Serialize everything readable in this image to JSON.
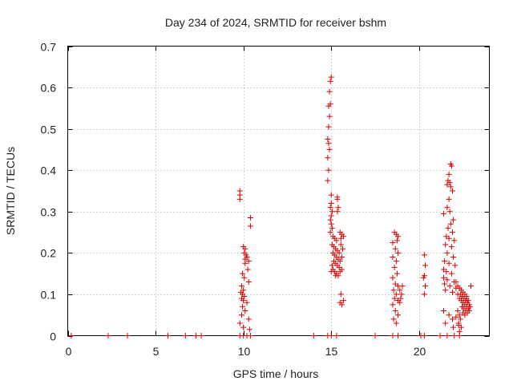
{
  "chart_data": {
    "type": "scatter",
    "title": "Day 234 of 2024, SRMTID for receiver bshm",
    "xlabel": "GPS time / hours",
    "ylabel": "SRMTID / TECUs",
    "xlim": [
      0,
      24
    ],
    "ylim": [
      0,
      0.7
    ],
    "xticks": [
      0,
      5,
      10,
      15,
      20
    ],
    "xtick_labels": [
      "0",
      "5",
      "10",
      "15",
      "20"
    ],
    "yticks": [
      0,
      0.1,
      0.2,
      0.3,
      0.4,
      0.5,
      0.6,
      0.7
    ],
    "ytick_labels": [
      "0",
      "0.1",
      "0.2",
      "0.3",
      "0.4",
      "0.5",
      "0.6",
      "0.7"
    ],
    "grid": true,
    "marker": "+",
    "color": "#dd0000",
    "series": [
      {
        "name": "bshm",
        "points": [
          [
            0.2,
            0
          ],
          [
            2.3,
            0
          ],
          [
            3.4,
            0
          ],
          [
            5.7,
            0
          ],
          [
            6.7,
            0
          ],
          [
            7.3,
            0
          ],
          [
            7.6,
            0
          ],
          [
            9.8,
            0
          ],
          [
            10.0,
            0
          ],
          [
            10.2,
            0
          ],
          [
            10.4,
            0
          ],
          [
            14.0,
            0
          ],
          [
            14.8,
            0
          ],
          [
            15.0,
            0
          ],
          [
            15.3,
            0
          ],
          [
            17.5,
            0
          ],
          [
            18.5,
            0
          ],
          [
            18.8,
            0
          ],
          [
            20.1,
            0
          ],
          [
            20.3,
            0
          ],
          [
            21.2,
            0
          ],
          [
            21.6,
            0
          ],
          [
            22.0,
            0
          ],
          [
            22.3,
            0
          ],
          [
            9.8,
            0.35
          ],
          [
            9.8,
            0.34
          ],
          [
            9.8,
            0.33
          ],
          [
            10.4,
            0.285
          ],
          [
            10.4,
            0.265
          ],
          [
            10.0,
            0.215
          ],
          [
            10.1,
            0.21
          ],
          [
            10.05,
            0.2
          ],
          [
            10.15,
            0.195
          ],
          [
            10.2,
            0.19
          ],
          [
            10.1,
            0.185
          ],
          [
            10.3,
            0.18
          ],
          [
            10.1,
            0.175
          ],
          [
            10.25,
            0.16
          ],
          [
            9.95,
            0.15
          ],
          [
            10.05,
            0.14
          ],
          [
            10.3,
            0.13
          ],
          [
            9.9,
            0.12
          ],
          [
            10.0,
            0.11
          ],
          [
            9.85,
            0.105
          ],
          [
            9.95,
            0.1
          ],
          [
            10.05,
            0.095
          ],
          [
            9.9,
            0.09
          ],
          [
            10.0,
            0.085
          ],
          [
            10.2,
            0.08
          ],
          [
            9.95,
            0.07
          ],
          [
            10.1,
            0.06
          ],
          [
            9.9,
            0.05
          ],
          [
            10.3,
            0.04
          ],
          [
            9.8,
            0.03
          ],
          [
            10.0,
            0.02
          ],
          [
            10.35,
            0.015
          ],
          [
            15.0,
            0.625
          ],
          [
            14.95,
            0.615
          ],
          [
            14.9,
            0.59
          ],
          [
            14.95,
            0.56
          ],
          [
            14.85,
            0.555
          ],
          [
            14.9,
            0.53
          ],
          [
            14.85,
            0.505
          ],
          [
            14.8,
            0.475
          ],
          [
            14.85,
            0.465
          ],
          [
            14.9,
            0.45
          ],
          [
            14.8,
            0.43
          ],
          [
            14.85,
            0.4
          ],
          [
            14.8,
            0.375
          ],
          [
            15.0,
            0.34
          ],
          [
            15.0,
            0.32
          ],
          [
            14.95,
            0.31
          ],
          [
            15.05,
            0.3
          ],
          [
            15.0,
            0.29
          ],
          [
            14.95,
            0.28
          ],
          [
            15.0,
            0.27
          ],
          [
            15.05,
            0.26
          ],
          [
            14.95,
            0.25
          ],
          [
            15.35,
            0.335
          ],
          [
            15.35,
            0.33
          ],
          [
            15.4,
            0.31
          ],
          [
            15.35,
            0.3
          ],
          [
            15.1,
            0.24
          ],
          [
            15.2,
            0.235
          ],
          [
            15.3,
            0.23
          ],
          [
            15.5,
            0.25
          ],
          [
            15.6,
            0.245
          ],
          [
            15.7,
            0.24
          ],
          [
            15.55,
            0.235
          ],
          [
            15.05,
            0.22
          ],
          [
            15.15,
            0.215
          ],
          [
            15.25,
            0.21
          ],
          [
            15.35,
            0.205
          ],
          [
            15.45,
            0.2
          ],
          [
            15.55,
            0.22
          ],
          [
            15.65,
            0.21
          ],
          [
            15.1,
            0.2
          ],
          [
            15.2,
            0.195
          ],
          [
            15.3,
            0.19
          ],
          [
            15.4,
            0.185
          ],
          [
            15.5,
            0.18
          ],
          [
            15.6,
            0.19
          ],
          [
            15.15,
            0.18
          ],
          [
            15.25,
            0.175
          ],
          [
            15.35,
            0.17
          ],
          [
            15.45,
            0.165
          ],
          [
            15.05,
            0.17
          ],
          [
            15.1,
            0.16
          ],
          [
            15.2,
            0.155
          ],
          [
            15.3,
            0.15
          ],
          [
            15.4,
            0.145
          ],
          [
            15.5,
            0.155
          ],
          [
            15.6,
            0.16
          ],
          [
            15.0,
            0.155
          ],
          [
            15.25,
            0.145
          ],
          [
            15.55,
            0.1
          ],
          [
            15.5,
            0.08
          ],
          [
            15.6,
            0.075
          ],
          [
            15.7,
            0.085
          ],
          [
            18.6,
            0.25
          ],
          [
            18.7,
            0.245
          ],
          [
            18.8,
            0.24
          ],
          [
            18.5,
            0.225
          ],
          [
            18.75,
            0.23
          ],
          [
            18.65,
            0.21
          ],
          [
            18.8,
            0.2
          ],
          [
            18.5,
            0.19
          ],
          [
            18.7,
            0.18
          ],
          [
            18.6,
            0.165
          ],
          [
            18.75,
            0.15
          ],
          [
            18.5,
            0.14
          ],
          [
            18.65,
            0.125
          ],
          [
            18.8,
            0.12
          ],
          [
            18.55,
            0.11
          ],
          [
            18.7,
            0.1
          ],
          [
            18.6,
            0.09
          ],
          [
            18.8,
            0.085
          ],
          [
            18.5,
            0.075
          ],
          [
            18.65,
            0.06
          ],
          [
            18.8,
            0.05
          ],
          [
            18.55,
            0.04
          ],
          [
            18.7,
            0.03
          ],
          [
            18.9,
            0.11
          ],
          [
            19.0,
            0.1
          ],
          [
            18.95,
            0.09
          ],
          [
            19.05,
            0.12
          ],
          [
            18.9,
            0.08
          ],
          [
            20.3,
            0.195
          ],
          [
            20.35,
            0.17
          ],
          [
            20.3,
            0.145
          ],
          [
            20.25,
            0.14
          ],
          [
            20.35,
            0.12
          ],
          [
            20.3,
            0.1
          ],
          [
            21.8,
            0.415
          ],
          [
            21.85,
            0.41
          ],
          [
            21.7,
            0.39
          ],
          [
            21.65,
            0.375
          ],
          [
            21.75,
            0.37
          ],
          [
            21.6,
            0.365
          ],
          [
            21.8,
            0.36
          ],
          [
            21.9,
            0.35
          ],
          [
            21.7,
            0.33
          ],
          [
            21.6,
            0.31
          ],
          [
            21.75,
            0.3
          ],
          [
            21.4,
            0.295
          ],
          [
            21.95,
            0.28
          ],
          [
            21.8,
            0.27
          ],
          [
            21.65,
            0.26
          ],
          [
            21.9,
            0.25
          ],
          [
            21.55,
            0.24
          ],
          [
            21.7,
            0.235
          ],
          [
            22.0,
            0.23
          ],
          [
            21.5,
            0.22
          ],
          [
            21.85,
            0.215
          ],
          [
            21.6,
            0.2
          ],
          [
            21.95,
            0.19
          ],
          [
            21.45,
            0.18
          ],
          [
            21.7,
            0.175
          ],
          [
            22.05,
            0.17
          ],
          [
            21.4,
            0.16
          ],
          [
            21.55,
            0.155
          ],
          [
            21.85,
            0.15
          ],
          [
            21.4,
            0.14
          ],
          [
            21.6,
            0.135
          ],
          [
            22.0,
            0.13
          ],
          [
            21.45,
            0.125
          ],
          [
            21.75,
            0.12
          ],
          [
            22.1,
            0.115
          ],
          [
            21.5,
            0.11
          ],
          [
            21.9,
            0.105
          ],
          [
            22.2,
            0.1
          ],
          [
            21.4,
            0.06
          ],
          [
            21.7,
            0.05
          ],
          [
            21.5,
            0.03
          ],
          [
            21.9,
            0.04
          ],
          [
            22.1,
            0.045
          ],
          [
            21.95,
            0.02
          ],
          [
            22.25,
            0.025
          ],
          [
            22.1,
            0.13
          ],
          [
            22.2,
            0.12
          ],
          [
            22.3,
            0.115
          ],
          [
            22.4,
            0.11
          ],
          [
            22.5,
            0.105
          ],
          [
            22.35,
            0.1
          ],
          [
            22.45,
            0.095
          ],
          [
            22.55,
            0.09
          ],
          [
            22.65,
            0.085
          ],
          [
            22.75,
            0.08
          ],
          [
            22.85,
            0.075
          ],
          [
            22.3,
            0.09
          ],
          [
            22.4,
            0.085
          ],
          [
            22.5,
            0.08
          ],
          [
            22.6,
            0.075
          ],
          [
            22.7,
            0.07
          ],
          [
            22.8,
            0.065
          ],
          [
            22.9,
            0.07
          ],
          [
            22.45,
            0.07
          ],
          [
            22.55,
            0.065
          ],
          [
            22.65,
            0.06
          ],
          [
            22.75,
            0.055
          ],
          [
            22.85,
            0.06
          ],
          [
            22.95,
            0.12
          ],
          [
            22.6,
            0.1
          ],
          [
            22.7,
            0.095
          ],
          [
            22.2,
            0.06
          ],
          [
            22.3,
            0.05
          ],
          [
            22.35,
            0.04
          ],
          [
            22.25,
            0.03
          ],
          [
            22.4,
            0.02
          ],
          [
            22.3,
            0.01
          ],
          [
            22.5,
            0.055
          ],
          [
            22.6,
            0.05
          ],
          [
            22.7,
            0.09
          ],
          [
            22.8,
            0.085
          ]
        ]
      }
    ]
  }
}
